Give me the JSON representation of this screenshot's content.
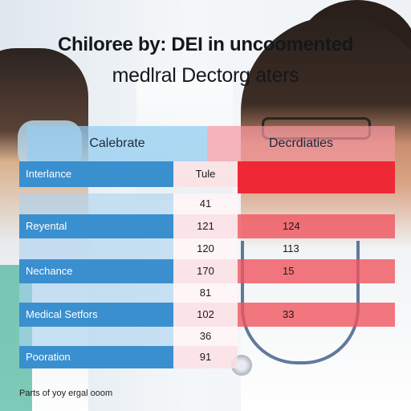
{
  "title_line1": "Chiloree by: DEI in uncoomented",
  "title_line2": "medlral Dectorg aters",
  "header": {
    "left": "Calebrate",
    "right": "Decrdiaties"
  },
  "rows": [
    {
      "label": "Interlance",
      "mid": "Tule",
      "right": ""
    },
    {
      "label": "",
      "mid": "41",
      "right": ""
    },
    {
      "label": "Reyental",
      "mid": "121",
      "right": "124"
    },
    {
      "label": "",
      "mid": "120",
      "right": "113"
    },
    {
      "label": "Nechance",
      "mid": "170",
      "right": "15"
    },
    {
      "label": "",
      "mid": "81",
      "right": ""
    },
    {
      "label": "Medical Setfors",
      "mid": "102",
      "right": "33"
    },
    {
      "label": "",
      "mid": "36",
      "right": ""
    },
    {
      "label": "Pooration",
      "mid": "91",
      "right": ""
    }
  ],
  "footer": "Parts of yoy ergal ooom"
}
